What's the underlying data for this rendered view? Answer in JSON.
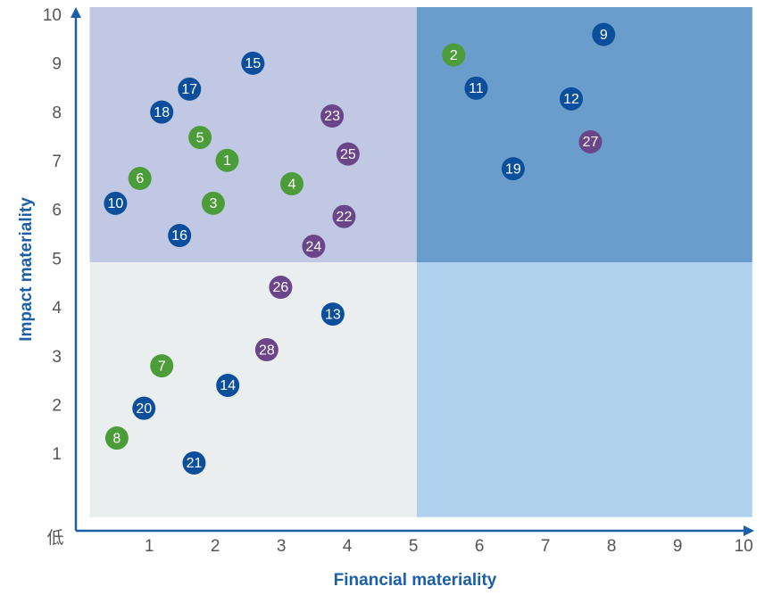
{
  "chart_data": {
    "type": "scatter",
    "x_label": "Financial materiality",
    "y_label": "Impact materiality",
    "origin_label": "低",
    "xlim": [
      -0.11,
      10.16
    ],
    "ylim": [
      -0.55,
      10.18
    ],
    "xticks": [
      1,
      2,
      3,
      4,
      5,
      6,
      7,
      8,
      9,
      10
    ],
    "yticks": [
      1,
      2,
      3,
      4,
      5,
      6,
      7,
      8,
      9,
      10
    ],
    "axis_color": "#1a5fa8",
    "quadrants": [
      {
        "x": [
          0.1,
          5.05
        ],
        "y": [
          4.95,
          10.18
        ],
        "color": "#c1c8e4"
      },
      {
        "x": [
          5.05,
          10.13
        ],
        "y": [
          4.95,
          10.18
        ],
        "color": "#6a9dcb"
      },
      {
        "x": [
          0.1,
          5.05
        ],
        "y": [
          -0.27,
          4.95
        ],
        "color": "#ebeeee"
      },
      {
        "x": [
          5.05,
          10.13
        ],
        "y": [
          -0.27,
          4.95
        ],
        "color": "#b0d1ee"
      }
    ],
    "series": [
      {
        "color": "#4c9d3a",
        "labels": [
          "1",
          "2",
          "3",
          "4",
          "5",
          "6",
          "7",
          "8"
        ],
        "x": [
          2.18,
          5.61,
          1.97,
          3.16,
          1.77,
          0.86,
          1.19,
          0.51
        ],
        "values": [
          7.04,
          9.2,
          6.16,
          6.56,
          7.51,
          6.67,
          2.83,
          1.35
        ]
      },
      {
        "color": "#0b4f9c",
        "labels": [
          "9",
          "10",
          "11",
          "12",
          "13",
          "14",
          "15",
          "16",
          "17",
          "18",
          "19",
          "20",
          "21"
        ],
        "x": [
          7.88,
          0.49,
          5.95,
          7.39,
          3.78,
          2.19,
          2.57,
          1.46,
          1.61,
          1.19,
          6.51,
          0.92,
          1.68
        ],
        "values": [
          9.62,
          6.16,
          8.52,
          8.3,
          3.89,
          2.43,
          9.03,
          5.5,
          8.5,
          8.03,
          6.87,
          1.96,
          0.84
        ]
      },
      {
        "color": "#6b4589",
        "labels": [
          "22",
          "23",
          "24",
          "25",
          "26",
          "27",
          "28"
        ],
        "x": [
          3.95,
          3.77,
          3.49,
          4.01,
          2.99,
          7.68,
          2.78
        ],
        "values": [
          5.89,
          7.95,
          5.28,
          7.17,
          4.44,
          7.42,
          3.16
        ]
      }
    ]
  }
}
